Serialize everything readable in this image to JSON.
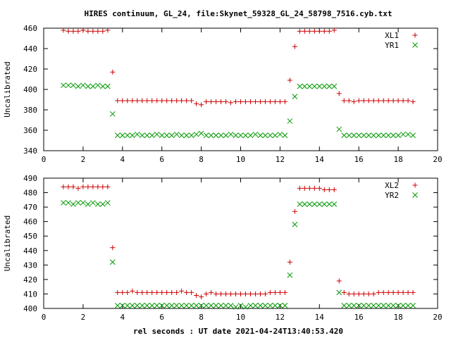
{
  "title": "HIRES continuum, GL_24, file:Skynet_59328_GL_24_58798_7516.cyb.txt",
  "xlabel": "rel seconds : UT date 2021-04-24T13:40:53.420",
  "colors": {
    "plus": "#cc0000",
    "cross": "#009900",
    "axis": "#000000"
  },
  "chart_data": [
    {
      "type": "scatter",
      "ylabel": "Uncalibrated",
      "xlim": [
        0,
        20
      ],
      "ylim": [
        340,
        460
      ],
      "xticks": [
        0,
        2,
        4,
        6,
        8,
        10,
        12,
        14,
        16,
        18,
        20
      ],
      "yticks": [
        340,
        360,
        380,
        400,
        420,
        440,
        460
      ],
      "legend": "top-right",
      "grid": false,
      "series": [
        {
          "name": "XL1",
          "marker": "plus",
          "x": [
            1.0,
            1.25,
            1.5,
            1.75,
            2.0,
            2.25,
            2.5,
            2.75,
            3.0,
            3.25,
            3.5,
            3.75,
            4.0,
            4.25,
            4.5,
            4.75,
            5.0,
            5.25,
            5.5,
            5.75,
            6.0,
            6.25,
            6.5,
            6.75,
            7.0,
            7.25,
            7.5,
            7.75,
            8.0,
            8.25,
            8.5,
            8.75,
            9.0,
            9.25,
            9.5,
            9.75,
            10.0,
            10.25,
            10.5,
            10.75,
            11.0,
            11.25,
            11.5,
            11.75,
            12.0,
            12.25,
            12.5,
            12.75,
            13.0,
            13.25,
            13.5,
            13.75,
            14.0,
            14.25,
            14.5,
            14.75,
            15.0,
            15.25,
            15.5,
            15.75,
            16.0,
            16.25,
            16.5,
            16.75,
            17.0,
            17.25,
            17.5,
            17.75,
            18.0,
            18.25,
            18.5,
            18.75
          ],
          "y": [
            458,
            457,
            457,
            457,
            458,
            457,
            457,
            457,
            457,
            458,
            417,
            389,
            389,
            389,
            389,
            389,
            389,
            389,
            389,
            389,
            389,
            389,
            389,
            389,
            389,
            389,
            389,
            386,
            385,
            388,
            388,
            388,
            388,
            388,
            387,
            388,
            388,
            388,
            388,
            388,
            388,
            388,
            388,
            388,
            388,
            388,
            409,
            442,
            457,
            457,
            457,
            457,
            457,
            457,
            457,
            458,
            396,
            389,
            389,
            388,
            389,
            389,
            389,
            389,
            389,
            389,
            389,
            389,
            389,
            389,
            389,
            388
          ]
        },
        {
          "name": "YR1",
          "marker": "cross",
          "x": [
            1.0,
            1.25,
            1.5,
            1.75,
            2.0,
            2.25,
            2.5,
            2.75,
            3.0,
            3.25,
            3.5,
            3.75,
            4.0,
            4.25,
            4.5,
            4.75,
            5.0,
            5.25,
            5.5,
            5.75,
            6.0,
            6.25,
            6.5,
            6.75,
            7.0,
            7.25,
            7.5,
            7.75,
            8.0,
            8.25,
            8.5,
            8.75,
            9.0,
            9.25,
            9.5,
            9.75,
            10.0,
            10.25,
            10.5,
            10.75,
            11.0,
            11.25,
            11.5,
            11.75,
            12.0,
            12.25,
            12.5,
            12.75,
            13.0,
            13.25,
            13.5,
            13.75,
            14.0,
            14.25,
            14.5,
            14.75,
            15.0,
            15.25,
            15.5,
            15.75,
            16.0,
            16.25,
            16.5,
            16.75,
            17.0,
            17.25,
            17.5,
            17.75,
            18.0,
            18.25,
            18.5,
            18.75
          ],
          "y": [
            404,
            404,
            404,
            403,
            404,
            403,
            403,
            404,
            403,
            403,
            376,
            355,
            355,
            355,
            355,
            356,
            355,
            355,
            355,
            356,
            355,
            355,
            355,
            356,
            355,
            355,
            355,
            356,
            357,
            355,
            355,
            355,
            355,
            355,
            356,
            355,
            355,
            355,
            355,
            356,
            355,
            355,
            355,
            355,
            356,
            355,
            369,
            393,
            403,
            403,
            403,
            403,
            403,
            403,
            403,
            403,
            361,
            355,
            355,
            355,
            355,
            355,
            355,
            355,
            355,
            355,
            355,
            355,
            355,
            356,
            356,
            355
          ]
        }
      ]
    },
    {
      "type": "scatter",
      "ylabel": "Uncalibrated",
      "xlim": [
        0,
        20
      ],
      "ylim": [
        400,
        490
      ],
      "xticks": [
        0,
        2,
        4,
        6,
        8,
        10,
        12,
        14,
        16,
        18,
        20
      ],
      "yticks": [
        400,
        410,
        420,
        430,
        440,
        450,
        460,
        470,
        480,
        490
      ],
      "legend": "top-right",
      "grid": false,
      "series": [
        {
          "name": "XL2",
          "marker": "plus",
          "x": [
            1.0,
            1.25,
            1.5,
            1.75,
            2.0,
            2.25,
            2.5,
            2.75,
            3.0,
            3.25,
            3.5,
            3.75,
            4.0,
            4.25,
            4.5,
            4.75,
            5.0,
            5.25,
            5.5,
            5.75,
            6.0,
            6.25,
            6.5,
            6.75,
            7.0,
            7.25,
            7.5,
            7.75,
            8.0,
            8.25,
            8.5,
            8.75,
            9.0,
            9.25,
            9.5,
            9.75,
            10.0,
            10.25,
            10.5,
            10.75,
            11.0,
            11.25,
            11.5,
            11.75,
            12.0,
            12.25,
            12.5,
            12.75,
            13.0,
            13.25,
            13.5,
            13.75,
            14.0,
            14.25,
            14.5,
            14.75,
            15.0,
            15.25,
            15.5,
            15.75,
            16.0,
            16.25,
            16.5,
            16.75,
            17.0,
            17.25,
            17.5,
            17.75,
            18.0,
            18.25,
            18.5,
            18.75
          ],
          "y": [
            484,
            484,
            484,
            483,
            484,
            484,
            484,
            484,
            484,
            484,
            442,
            411,
            411,
            411,
            412,
            411,
            411,
            411,
            411,
            411,
            411,
            411,
            411,
            411,
            412,
            411,
            411,
            409,
            408,
            410,
            411,
            410,
            410,
            410,
            410,
            410,
            410,
            410,
            410,
            410,
            410,
            410,
            411,
            411,
            411,
            411,
            432,
            467,
            483,
            483,
            483,
            483,
            483,
            482,
            482,
            482,
            419,
            411,
            410,
            410,
            410,
            410,
            410,
            410,
            411,
            411,
            411,
            411,
            411,
            411,
            411,
            411
          ]
        },
        {
          "name": "YR2",
          "marker": "cross",
          "x": [
            1.0,
            1.25,
            1.5,
            1.75,
            2.0,
            2.25,
            2.5,
            2.75,
            3.0,
            3.25,
            3.5,
            3.75,
            4.0,
            4.25,
            4.5,
            4.75,
            5.0,
            5.25,
            5.5,
            5.75,
            6.0,
            6.25,
            6.5,
            6.75,
            7.0,
            7.25,
            7.5,
            7.75,
            8.0,
            8.25,
            8.5,
            8.75,
            9.0,
            9.25,
            9.5,
            9.75,
            10.0,
            10.25,
            10.5,
            10.75,
            11.0,
            11.25,
            11.5,
            11.75,
            12.0,
            12.25,
            12.5,
            12.75,
            13.0,
            13.25,
            13.5,
            13.75,
            14.0,
            14.25,
            14.5,
            14.75,
            15.0,
            15.25,
            15.5,
            15.75,
            16.0,
            16.25,
            16.5,
            16.75,
            17.0,
            17.25,
            17.5,
            17.75,
            18.0,
            18.25,
            18.5,
            18.75
          ],
          "y": [
            473,
            473,
            472,
            473,
            473,
            472,
            473,
            472,
            472,
            473,
            432,
            402,
            402,
            402,
            402,
            402,
            402,
            402,
            402,
            402,
            402,
            402,
            402,
            402,
            402,
            402,
            402,
            402,
            402,
            402,
            402,
            402,
            402,
            402,
            402,
            401,
            402,
            401,
            402,
            402,
            402,
            402,
            402,
            402,
            402,
            402,
            423,
            458,
            472,
            472,
            472,
            472,
            472,
            472,
            472,
            472,
            411,
            402,
            402,
            402,
            402,
            402,
            402,
            402,
            402,
            402,
            402,
            402,
            402,
            402,
            402,
            402
          ]
        }
      ]
    }
  ]
}
